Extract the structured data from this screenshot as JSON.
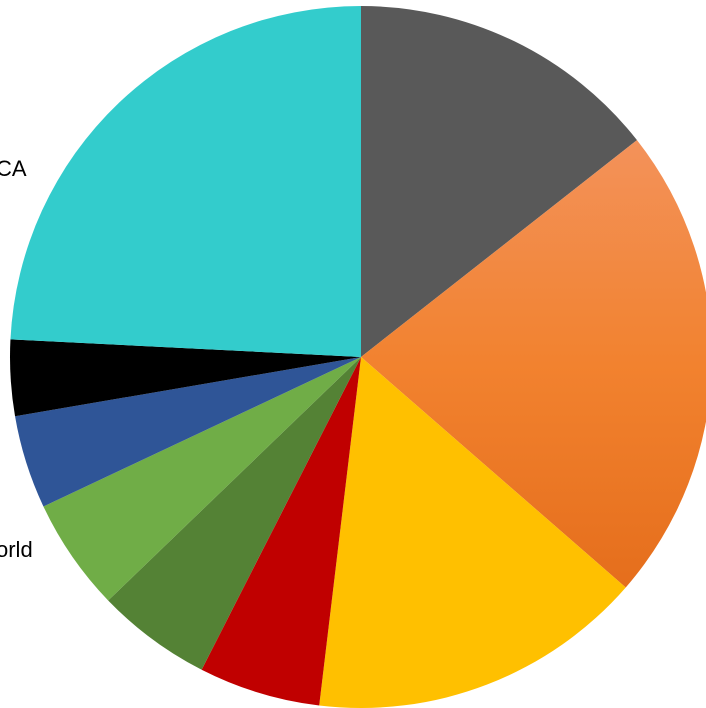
{
  "chart_data": {
    "type": "pie",
    "title": "",
    "slices": [
      {
        "label": "",
        "value": 14.4,
        "color": "#595959"
      },
      {
        "label": "",
        "value": 22.0,
        "color": "#ED7D31"
      },
      {
        "label": "",
        "value": 15.5,
        "color": "#FFC000"
      },
      {
        "label": "",
        "value": 5.6,
        "color": "#C00000"
      },
      {
        "label": "",
        "value": 5.3,
        "color": "#548235"
      },
      {
        "label": "",
        "value": 5.2,
        "color": "#70AD47"
      },
      {
        "label": "",
        "value": 4.3,
        "color": "#2F5597"
      },
      {
        "label": "",
        "value": 3.5,
        "color": "#000000"
      },
      {
        "label": "",
        "value": 24.2,
        "color": "#33CCCC"
      }
    ],
    "labels": [
      {
        "text": "CA"
      },
      {
        "text": "orld"
      }
    ],
    "start_angle_deg": 0,
    "direction": "clockwise"
  }
}
